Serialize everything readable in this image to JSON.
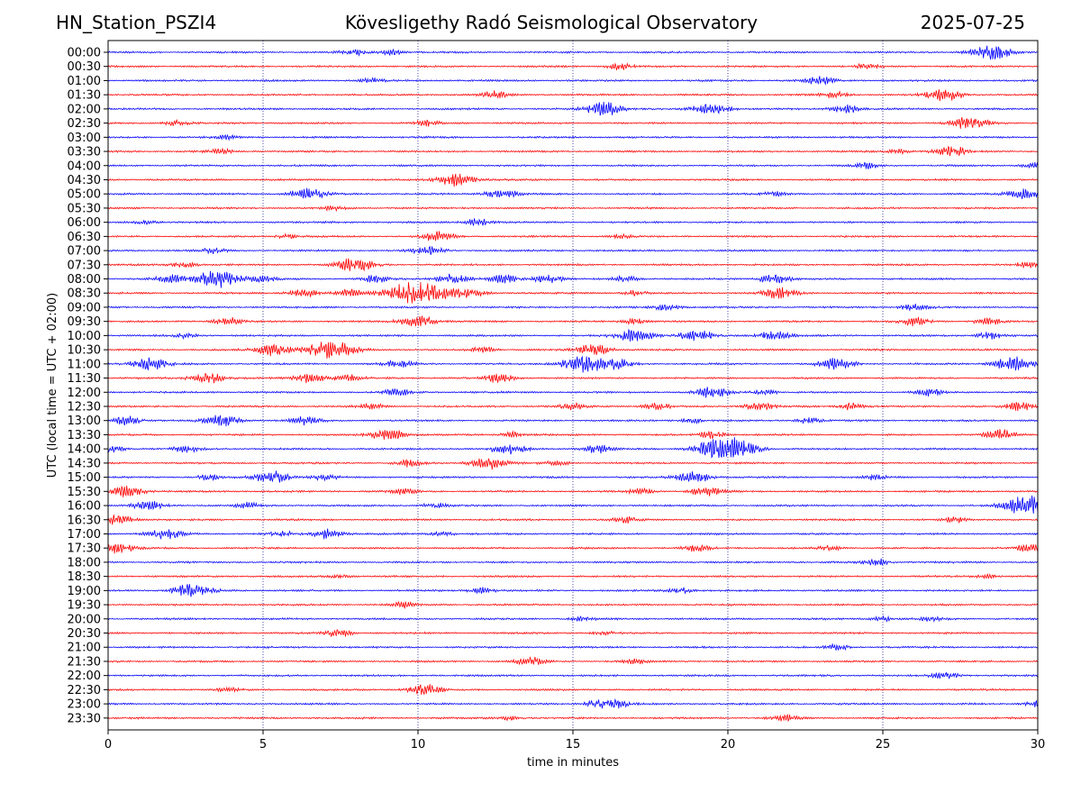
{
  "header": {
    "station": "HN_Station_PSZI4",
    "observatory": "Kövesligethy Radó Seismological Observatory",
    "date": "2025-07-25"
  },
  "chart_data": {
    "type": "line",
    "title": "Kövesligethy Radó Seismological Observatory",
    "xlabel": "time in minutes",
    "ylabel": "UTC (local time = UTC + 02:00)",
    "xlim": [
      0,
      30
    ],
    "x_ticks": [
      "0",
      "5",
      "10",
      "15",
      "20",
      "25",
      "30"
    ],
    "grid": "vertical dotted lines at 5-minute ticks",
    "colors": {
      "even": "#0000ff",
      "odd": "#ff0000",
      "grid": "#000080"
    },
    "rows": [
      {
        "label": "00:00",
        "events": [
          [
            28.5,
            1.0
          ],
          [
            7.9,
            0.4
          ],
          [
            9.2,
            0.4
          ]
        ]
      },
      {
        "label": "00:30",
        "events": [
          [
            16.5,
            0.5
          ],
          [
            24.5,
            0.4
          ]
        ]
      },
      {
        "label": "01:00",
        "events": [
          [
            23.0,
            0.6
          ],
          [
            8.5,
            0.3
          ]
        ]
      },
      {
        "label": "01:30",
        "events": [
          [
            27.0,
            0.9
          ],
          [
            12.5,
            0.5
          ],
          [
            23.5,
            0.5
          ]
        ]
      },
      {
        "label": "02:00",
        "events": [
          [
            16.0,
            1.0
          ],
          [
            19.5,
            0.9
          ],
          [
            23.8,
            0.6
          ]
        ]
      },
      {
        "label": "02:30",
        "events": [
          [
            27.8,
            0.9
          ],
          [
            2.2,
            0.4
          ],
          [
            10.3,
            0.4
          ]
        ]
      },
      {
        "label": "03:00",
        "events": [
          [
            3.8,
            0.3
          ]
        ]
      },
      {
        "label": "03:30",
        "events": [
          [
            27.2,
            0.8
          ],
          [
            3.6,
            0.4
          ],
          [
            25.5,
            0.3
          ]
        ]
      },
      {
        "label": "04:00",
        "events": [
          [
            24.5,
            0.4
          ],
          [
            29.9,
            0.4
          ]
        ]
      },
      {
        "label": "04:30",
        "events": [
          [
            11.2,
            0.9
          ]
        ]
      },
      {
        "label": "05:00",
        "events": [
          [
            6.5,
            0.9
          ],
          [
            12.7,
            0.7
          ],
          [
            29.5,
            0.7
          ],
          [
            21.5,
            0.3
          ]
        ]
      },
      {
        "label": "05:30",
        "events": [
          [
            7.3,
            0.3
          ]
        ]
      },
      {
        "label": "06:00",
        "events": [
          [
            12.0,
            0.6
          ],
          [
            1.2,
            0.3
          ]
        ]
      },
      {
        "label": "06:30",
        "events": [
          [
            10.6,
            0.7
          ],
          [
            5.8,
            0.3
          ],
          [
            16.5,
            0.3
          ]
        ]
      },
      {
        "label": "07:00",
        "events": [
          [
            10.3,
            0.6
          ],
          [
            3.4,
            0.4
          ]
        ]
      },
      {
        "label": "07:30",
        "events": [
          [
            8.0,
            1.0
          ],
          [
            2.5,
            0.4
          ],
          [
            29.7,
            0.4
          ]
        ]
      },
      {
        "label": "08:00",
        "events": [
          [
            3.5,
            1.3
          ],
          [
            11.1,
            0.7
          ],
          [
            2.0,
            0.6
          ],
          [
            5.0,
            0.5
          ],
          [
            8.6,
            0.5
          ],
          [
            12.8,
            0.6
          ],
          [
            14.2,
            0.6
          ],
          [
            16.7,
            0.4
          ],
          [
            21.5,
            0.7
          ]
        ]
      },
      {
        "label": "08:30",
        "events": [
          [
            9.5,
            1.2
          ],
          [
            10.4,
            1.3
          ],
          [
            6.3,
            0.6
          ],
          [
            7.8,
            0.5
          ],
          [
            11.7,
            0.6
          ],
          [
            21.7,
            0.8
          ],
          [
            17.0,
            0.4
          ]
        ]
      },
      {
        "label": "09:00",
        "events": [
          [
            18.0,
            0.5
          ],
          [
            26.0,
            0.5
          ]
        ]
      },
      {
        "label": "09:30",
        "events": [
          [
            10.0,
            0.9
          ],
          [
            3.9,
            0.6
          ],
          [
            26.0,
            0.6
          ],
          [
            28.4,
            0.5
          ],
          [
            17.0,
            0.4
          ]
        ]
      },
      {
        "label": "10:00",
        "events": [
          [
            17.0,
            1.0
          ],
          [
            19.0,
            0.8
          ],
          [
            21.5,
            0.7
          ],
          [
            28.4,
            0.5
          ],
          [
            2.5,
            0.3
          ]
        ]
      },
      {
        "label": "10:30",
        "events": [
          [
            7.2,
            1.4
          ],
          [
            5.3,
            0.9
          ],
          [
            15.7,
            0.8
          ],
          [
            12.1,
            0.4
          ]
        ]
      },
      {
        "label": "11:00",
        "events": [
          [
            1.3,
            0.9
          ],
          [
            15.3,
            1.2
          ],
          [
            29.2,
            1.0
          ],
          [
            23.5,
            0.8
          ],
          [
            9.4,
            0.6
          ],
          [
            16.4,
            0.7
          ]
        ]
      },
      {
        "label": "11:30",
        "events": [
          [
            3.2,
            0.8
          ],
          [
            6.5,
            0.7
          ],
          [
            12.6,
            0.6
          ],
          [
            7.7,
            0.6
          ]
        ]
      },
      {
        "label": "12:00",
        "events": [
          [
            19.5,
            0.8
          ],
          [
            9.3,
            0.5
          ],
          [
            26.5,
            0.5
          ],
          [
            21.2,
            0.4
          ]
        ]
      },
      {
        "label": "12:30",
        "events": [
          [
            17.7,
            0.5
          ],
          [
            21.0,
            0.6
          ],
          [
            29.4,
            0.6
          ],
          [
            24.0,
            0.5
          ],
          [
            15.0,
            0.4
          ],
          [
            8.5,
            0.4
          ]
        ]
      },
      {
        "label": "13:00",
        "events": [
          [
            3.7,
            0.8
          ],
          [
            0.6,
            0.6
          ],
          [
            6.4,
            0.6
          ],
          [
            18.8,
            0.4
          ],
          [
            22.6,
            0.4
          ]
        ]
      },
      {
        "label": "13:30",
        "events": [
          [
            9.0,
            0.9
          ],
          [
            28.8,
            0.7
          ],
          [
            19.5,
            0.5
          ],
          [
            13.0,
            0.4
          ]
        ]
      },
      {
        "label": "14:00",
        "events": [
          [
            19.5,
            1.1
          ],
          [
            20.2,
            1.3
          ],
          [
            12.9,
            0.8
          ],
          [
            15.8,
            0.6
          ],
          [
            2.5,
            0.5
          ],
          [
            0.2,
            0.4
          ]
        ]
      },
      {
        "label": "14:30",
        "events": [
          [
            12.3,
            0.9
          ],
          [
            9.7,
            0.5
          ],
          [
            14.5,
            0.4
          ]
        ]
      },
      {
        "label": "15:00",
        "events": [
          [
            5.3,
            0.9
          ],
          [
            18.9,
            0.8
          ],
          [
            3.3,
            0.4
          ],
          [
            24.7,
            0.4
          ],
          [
            7.0,
            0.4
          ]
        ]
      },
      {
        "label": "15:30",
        "events": [
          [
            0.6,
            0.8
          ],
          [
            19.3,
            0.7
          ],
          [
            9.5,
            0.4
          ],
          [
            17.2,
            0.4
          ]
        ]
      },
      {
        "label": "16:00",
        "events": [
          [
            29.7,
            1.4
          ],
          [
            1.3,
            0.6
          ],
          [
            10.5,
            0.4
          ],
          [
            4.5,
            0.4
          ]
        ]
      },
      {
        "label": "16:30",
        "events": [
          [
            0.3,
            0.7
          ],
          [
            16.7,
            0.4
          ],
          [
            27.3,
            0.4
          ]
        ]
      },
      {
        "label": "17:00",
        "events": [
          [
            1.8,
            0.8
          ],
          [
            7.1,
            0.7
          ],
          [
            5.6,
            0.4
          ],
          [
            10.8,
            0.3
          ]
        ]
      },
      {
        "label": "17:30",
        "events": [
          [
            0.4,
            0.8
          ],
          [
            19.0,
            0.5
          ],
          [
            29.7,
            0.5
          ],
          [
            23.3,
            0.3
          ]
        ]
      },
      {
        "label": "18:00",
        "events": [
          [
            24.8,
            0.5
          ]
        ]
      },
      {
        "label": "18:30",
        "events": [
          [
            7.5,
            0.3
          ],
          [
            28.4,
            0.3
          ]
        ]
      },
      {
        "label": "19:00",
        "events": [
          [
            2.7,
            1.0
          ],
          [
            12.0,
            0.5
          ],
          [
            18.5,
            0.4
          ]
        ]
      },
      {
        "label": "19:30",
        "events": [
          [
            9.5,
            0.4
          ]
        ]
      },
      {
        "label": "20:00",
        "events": [
          [
            15.3,
            0.3
          ],
          [
            25.0,
            0.3
          ],
          [
            26.5,
            0.3
          ]
        ]
      },
      {
        "label": "20:30",
        "events": [
          [
            7.4,
            0.6
          ],
          [
            16.0,
            0.3
          ]
        ]
      },
      {
        "label": "21:00",
        "events": [
          [
            23.5,
            0.4
          ]
        ]
      },
      {
        "label": "21:30",
        "events": [
          [
            13.6,
            0.6
          ],
          [
            17.0,
            0.3
          ]
        ]
      },
      {
        "label": "22:00",
        "events": [
          [
            27.0,
            0.5
          ]
        ]
      },
      {
        "label": "22:30",
        "events": [
          [
            10.2,
            0.8
          ],
          [
            3.9,
            0.3
          ]
        ]
      },
      {
        "label": "23:00",
        "events": [
          [
            16.1,
            0.9
          ],
          [
            29.9,
            0.4
          ]
        ]
      },
      {
        "label": "23:30",
        "events": [
          [
            21.8,
            0.5
          ],
          [
            13.0,
            0.3
          ]
        ]
      }
    ]
  }
}
